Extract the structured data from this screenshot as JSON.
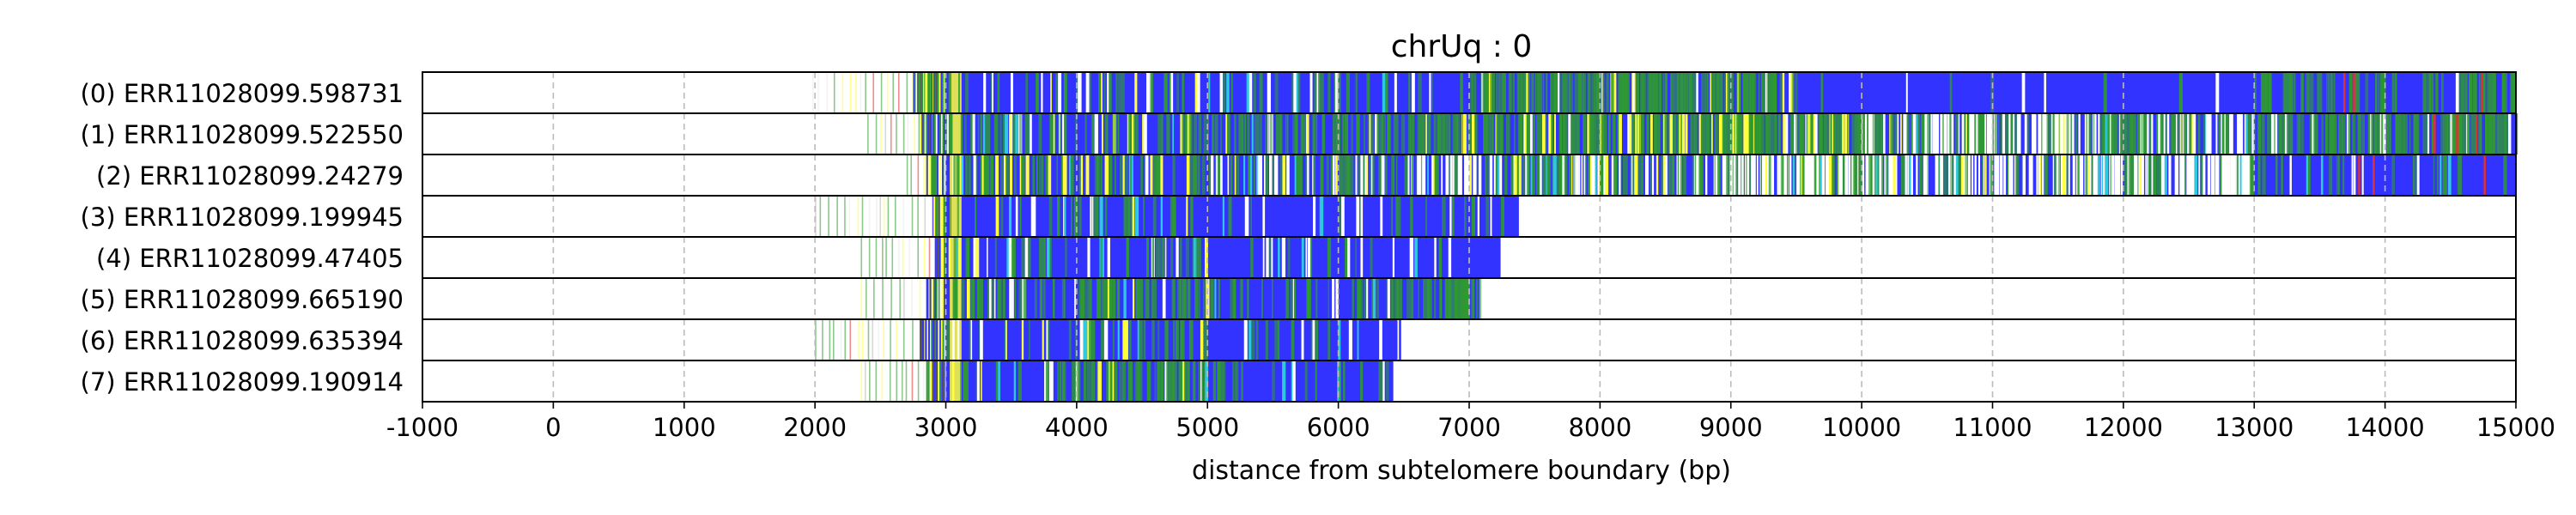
{
  "chart_data": {
    "type": "heatmap",
    "title": "chrUq : 0",
    "xlabel": "distance from subtelomere boundary (bp)",
    "ylabel": "",
    "xlim": [
      -1000,
      15000
    ],
    "xticks": [
      -1000,
      0,
      1000,
      2000,
      3000,
      4000,
      5000,
      6000,
      7000,
      8000,
      9000,
      10000,
      11000,
      12000,
      13000,
      14000,
      15000
    ],
    "grid": "vertical dashed at x ticks",
    "colors": {
      "main": "#3333ff",
      "green": "#2e9b2e",
      "yellow": "#ffff3b",
      "cyan": "#2ec8e0",
      "red": "#e03030",
      "white": "#ffffff",
      "gap": "#e9e9e9"
    },
    "reads": [
      {
        "label": "(0) ERR11028099.598731",
        "sparse_start": 1980,
        "start": 2750,
        "end": 15000,
        "regions": [
          {
            "from": 3000,
            "to": 6000,
            "green": 0.1,
            "white": 0.04,
            "yellow": 0.02,
            "cyan": 0.02
          },
          {
            "from": 6000,
            "to": 7000,
            "green": 0.05,
            "white": 0.02,
            "yellow": 0.0,
            "cyan": 0.01
          },
          {
            "from": 7000,
            "to": 9500,
            "green": 0.45,
            "white": 0.03,
            "yellow": 0.05,
            "cyan": 0.0
          },
          {
            "from": 9500,
            "to": 13000,
            "green": 0.03,
            "white": 0.01,
            "yellow": 0.0,
            "cyan": 0.0
          },
          {
            "from": 13000,
            "to": 15000,
            "green": 0.3,
            "white": 0.03,
            "yellow": 0.0,
            "cyan": 0.0
          }
        ]
      },
      {
        "label": "(1) ERR11028099.522550",
        "sparse_start": 2400,
        "start": 2800,
        "end": 15000,
        "regions": [
          {
            "from": 3000,
            "to": 5500,
            "green": 0.25,
            "white": 0.04,
            "yellow": 0.04,
            "cyan": 0.03
          },
          {
            "from": 5500,
            "to": 8000,
            "green": 0.35,
            "white": 0.05,
            "yellow": 0.04,
            "cyan": 0.0
          },
          {
            "from": 8000,
            "to": 10000,
            "green": 0.45,
            "white": 0.05,
            "yellow": 0.15,
            "cyan": 0.0
          },
          {
            "from": 10000,
            "to": 13000,
            "green": 0.3,
            "white": 0.35,
            "yellow": 0.02,
            "cyan": 0.02
          },
          {
            "from": 13000,
            "to": 15000,
            "green": 0.45,
            "white": 0.05,
            "yellow": 0.0,
            "cyan": 0.0
          }
        ]
      },
      {
        "label": "(2) ERR11028099.24279",
        "sparse_start": 2700,
        "start": 2850,
        "end": 15000,
        "regions": [
          {
            "from": 3000,
            "to": 5000,
            "green": 0.25,
            "white": 0.04,
            "yellow": 0.08,
            "cyan": 0.02
          },
          {
            "from": 5000,
            "to": 9000,
            "green": 0.25,
            "white": 0.15,
            "yellow": 0.04,
            "cyan": 0.02
          },
          {
            "from": 9000,
            "to": 13000,
            "green": 0.2,
            "white": 0.35,
            "yellow": 0.03,
            "cyan": 0.02
          },
          {
            "from": 13000,
            "to": 15000,
            "green": 0.08,
            "white": 0.05,
            "yellow": 0.0,
            "cyan": 0.01
          }
        ]
      },
      {
        "label": "(3) ERR11028099.199945",
        "sparse_start": 2000,
        "start": 2900,
        "end": 7380,
        "regions": [
          {
            "from": 3000,
            "to": 5000,
            "green": 0.15,
            "white": 0.04,
            "yellow": 0.02,
            "cyan": 0.02
          },
          {
            "from": 5000,
            "to": 7380,
            "green": 0.05,
            "white": 0.05,
            "yellow": 0.0,
            "cyan": 0.01
          }
        ]
      },
      {
        "label": "(4) ERR11028099.47405",
        "sparse_start": 2350,
        "start": 2900,
        "end": 7240,
        "regions": [
          {
            "from": 3000,
            "to": 5000,
            "green": 0.12,
            "white": 0.04,
            "yellow": 0.02,
            "cyan": 0.02
          },
          {
            "from": 5000,
            "to": 7240,
            "green": 0.04,
            "white": 0.05,
            "yellow": 0.0,
            "cyan": 0.01
          }
        ]
      },
      {
        "label": "(5) ERR11028099.665190",
        "sparse_start": 2350,
        "start": 2850,
        "end": 7080,
        "regions": [
          {
            "from": 3000,
            "to": 5000,
            "green": 0.3,
            "white": 0.04,
            "yellow": 0.02,
            "cyan": 0.02
          },
          {
            "from": 5000,
            "to": 6400,
            "green": 0.15,
            "white": 0.04,
            "yellow": 0.0,
            "cyan": 0.02
          },
          {
            "from": 6400,
            "to": 7080,
            "green": 0.55,
            "white": 0.02,
            "yellow": 0.0,
            "cyan": 0.0
          }
        ]
      },
      {
        "label": "(6) ERR11028099.635394",
        "sparse_start": 2000,
        "start": 2800,
        "end": 6480,
        "regions": [
          {
            "from": 3000,
            "to": 5000,
            "green": 0.12,
            "white": 0.04,
            "yellow": 0.02,
            "cyan": 0.02
          },
          {
            "from": 5000,
            "to": 6480,
            "green": 0.04,
            "white": 0.04,
            "yellow": 0.0,
            "cyan": 0.01
          }
        ]
      },
      {
        "label": "(7) ERR11028099.190914",
        "sparse_start": 2350,
        "start": 2850,
        "end": 6420,
        "regions": [
          {
            "from": 3000,
            "to": 4000,
            "green": 0.12,
            "white": 0.04,
            "yellow": 0.02,
            "cyan": 0.02
          },
          {
            "from": 4000,
            "to": 5300,
            "green": 0.45,
            "white": 0.03,
            "yellow": 0.02,
            "cyan": 0.01
          },
          {
            "from": 5300,
            "to": 6420,
            "green": 0.08,
            "white": 0.04,
            "yellow": 0.0,
            "cyan": 0.02
          }
        ]
      }
    ]
  }
}
